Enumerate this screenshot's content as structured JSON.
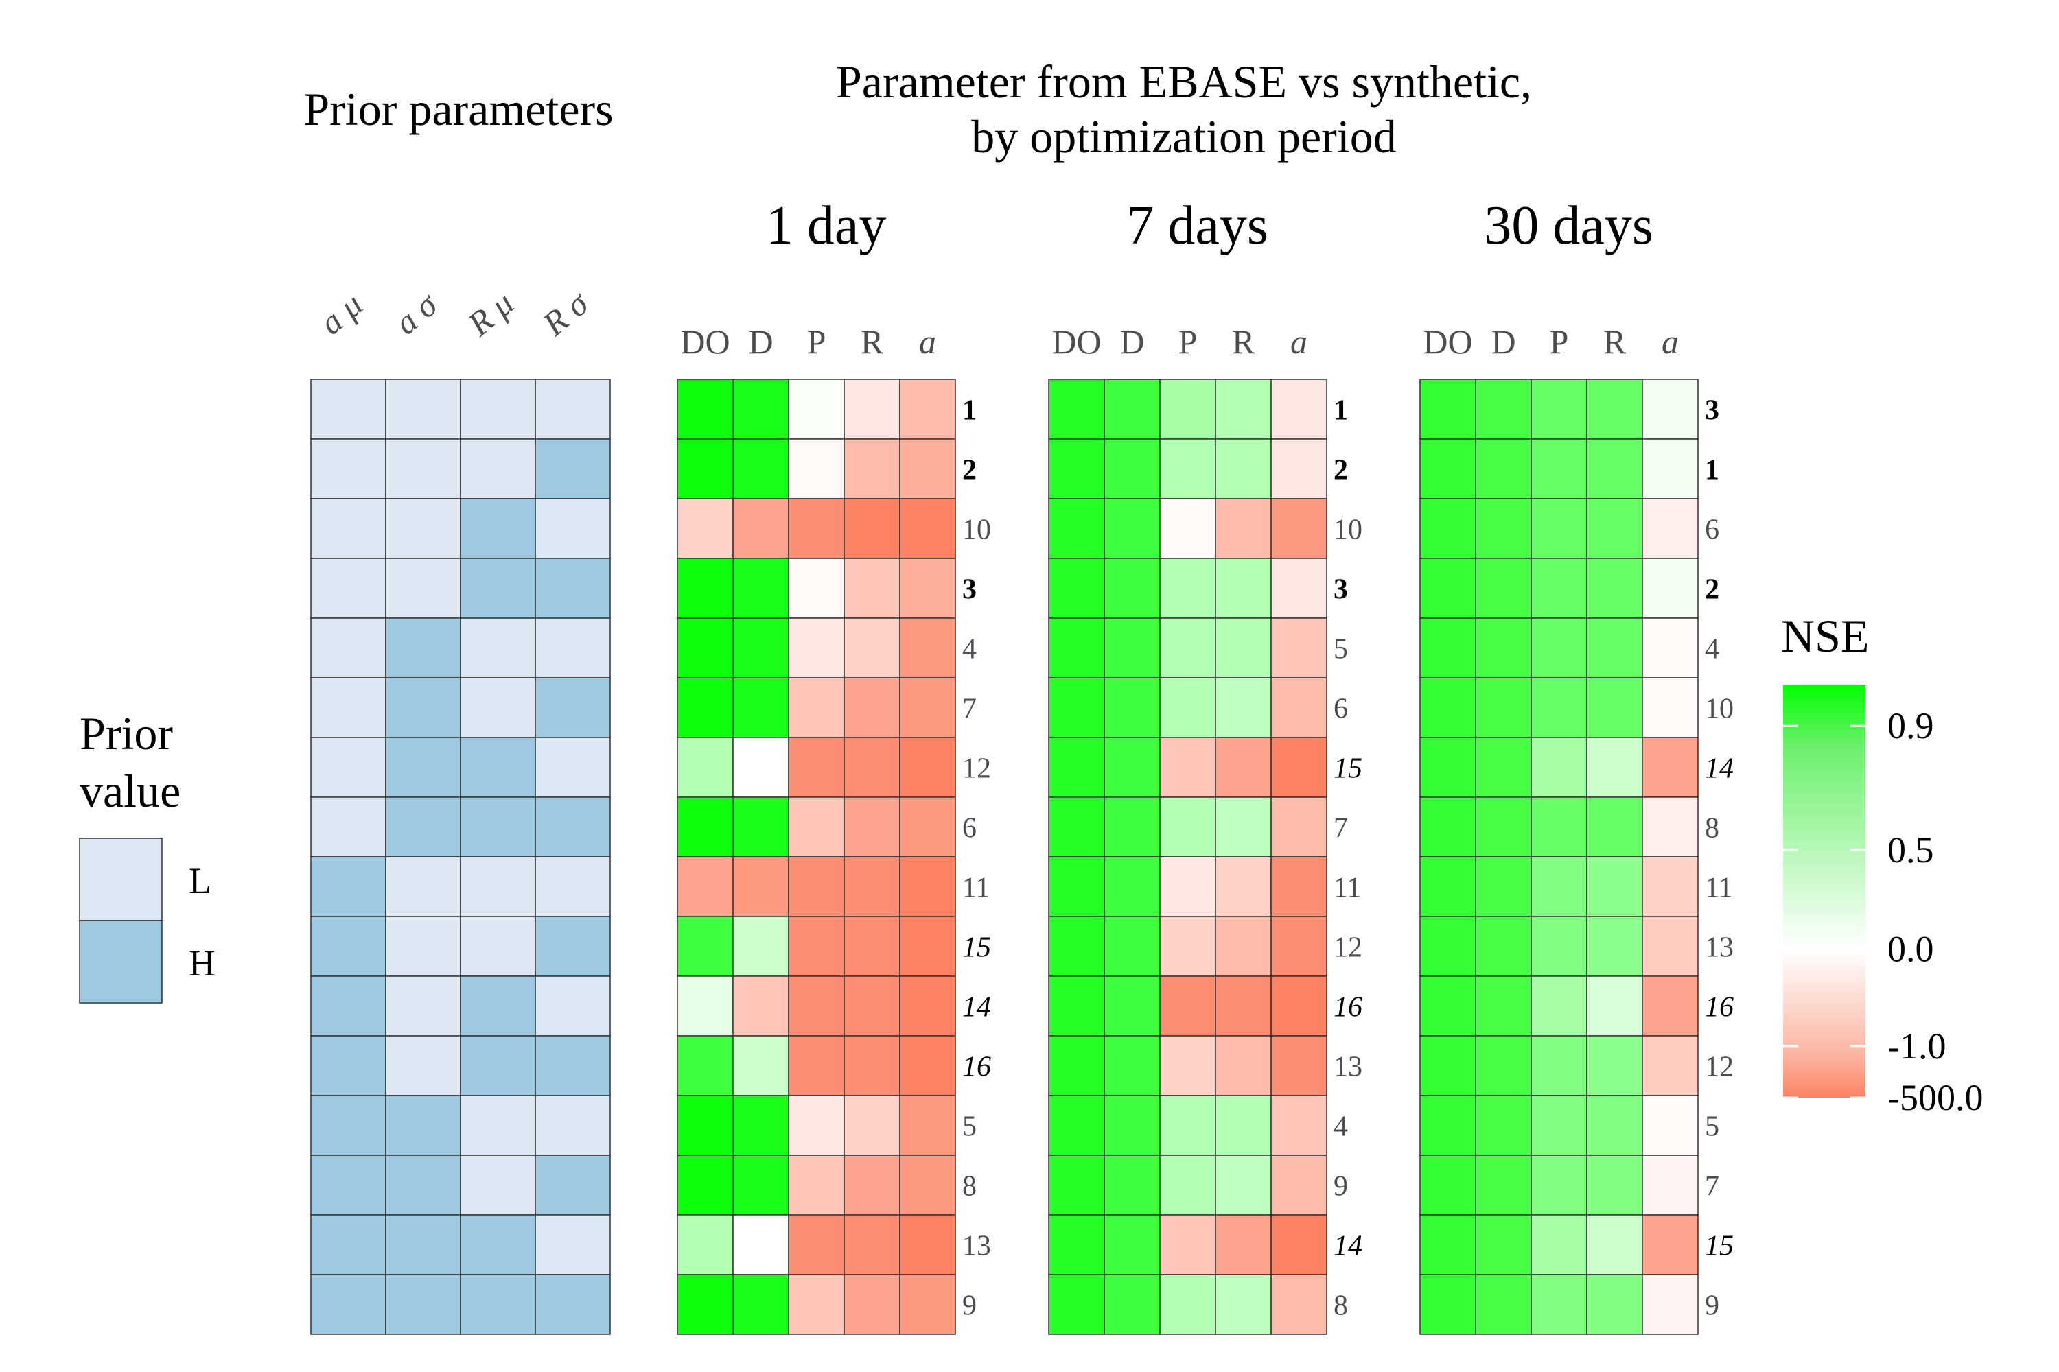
{
  "chart_data": {
    "type": "heatmap",
    "left_title": "Prior parameters",
    "right_title_line1": "Parameter from EBASE vs synthetic,",
    "right_title_line2": "by optimization period",
    "prior": {
      "columns": [
        "a μ",
        "a σ",
        "R μ",
        "R σ"
      ],
      "levels": {
        "L": "#dde8f4",
        "H": "#9ecae1"
      },
      "rows": [
        [
          "L",
          "L",
          "L",
          "L"
        ],
        [
          "L",
          "L",
          "L",
          "H"
        ],
        [
          "L",
          "L",
          "H",
          "L"
        ],
        [
          "L",
          "L",
          "H",
          "H"
        ],
        [
          "L",
          "H",
          "L",
          "L"
        ],
        [
          "L",
          "H",
          "L",
          "H"
        ],
        [
          "L",
          "H",
          "H",
          "L"
        ],
        [
          "L",
          "H",
          "H",
          "H"
        ],
        [
          "H",
          "L",
          "L",
          "L"
        ],
        [
          "H",
          "L",
          "L",
          "H"
        ],
        [
          "H",
          "L",
          "H",
          "L"
        ],
        [
          "H",
          "L",
          "H",
          "H"
        ],
        [
          "H",
          "H",
          "L",
          "L"
        ],
        [
          "H",
          "H",
          "L",
          "H"
        ],
        [
          "H",
          "H",
          "H",
          "L"
        ],
        [
          "H",
          "H",
          "H",
          "H"
        ]
      ]
    },
    "legend_prior": {
      "title_line1": "Prior",
      "title_line2": "value",
      "items": [
        "L",
        "H"
      ]
    },
    "legend_nse": {
      "title": "NSE",
      "ticks": [
        {
          "label": "0.9",
          "pos": 0.1
        },
        {
          "label": "0.5",
          "pos": 0.4
        },
        {
          "label": "0.0",
          "pos": 0.64
        },
        {
          "label": "-1.0",
          "pos": 0.875
        },
        {
          "label": "-500.0",
          "pos": 1.0
        }
      ],
      "gradient": [
        "#00ff00",
        "#6cf06c",
        "#ffffff",
        "#fbb4a0",
        "#fd8264"
      ]
    },
    "columns": [
      "DO",
      "D",
      "P",
      "R",
      "a"
    ],
    "periods": [
      {
        "name": "1 day",
        "ranks": [
          "1",
          "2",
          "10",
          "3",
          "4",
          "7",
          "12",
          "6",
          "11",
          "15",
          "14",
          "16",
          "5",
          "8",
          "13",
          "9"
        ],
        "styles": [
          "bold",
          "bold",
          "normal",
          "bold",
          "normal",
          "normal",
          "normal",
          "normal",
          "normal",
          "italic",
          "italic",
          "italic",
          "normal",
          "normal",
          "normal",
          "normal"
        ],
        "values": [
          [
            0.95,
            0.9,
            0.02,
            -0.2,
            -0.6
          ],
          [
            0.95,
            0.9,
            -0.05,
            -0.6,
            -0.7
          ],
          [
            -0.4,
            -0.8,
            -1.0,
            -1.1,
            -1.1
          ],
          [
            0.95,
            0.9,
            -0.05,
            -0.5,
            -0.7
          ],
          [
            0.95,
            0.9,
            -0.2,
            -0.4,
            -0.9
          ],
          [
            0.95,
            0.9,
            -0.5,
            -0.8,
            -0.9
          ],
          [
            0.3,
            0.0,
            -1.0,
            -1.0,
            -1.1
          ],
          [
            0.95,
            0.9,
            -0.5,
            -0.8,
            -0.9
          ],
          [
            -0.8,
            -0.9,
            -1.0,
            -1.0,
            -1.1
          ],
          [
            0.75,
            0.2,
            -1.0,
            -1.0,
            -1.1
          ],
          [
            0.1,
            -0.5,
            -1.0,
            -1.0,
            -1.1
          ],
          [
            0.75,
            0.2,
            -1.0,
            -1.0,
            -1.1
          ],
          [
            0.95,
            0.9,
            -0.2,
            -0.4,
            -0.9
          ],
          [
            0.95,
            0.9,
            -0.5,
            -0.8,
            -0.9
          ],
          [
            0.3,
            0.0,
            -1.0,
            -1.0,
            -1.1
          ],
          [
            0.95,
            0.9,
            -0.5,
            -0.8,
            -0.9
          ]
        ]
      },
      {
        "name": "7 days",
        "ranks": [
          "1",
          "2",
          "10",
          "3",
          "5",
          "6",
          "15",
          "7",
          "11",
          "12",
          "16",
          "13",
          "4",
          "9",
          "14",
          "8"
        ],
        "styles": [
          "bold",
          "bold",
          "normal",
          "bold",
          "normal",
          "normal",
          "italic",
          "normal",
          "normal",
          "normal",
          "italic",
          "normal",
          "normal",
          "normal",
          "italic",
          "normal"
        ],
        "values": [
          [
            0.85,
            0.75,
            0.35,
            0.3,
            -0.2
          ],
          [
            0.85,
            0.75,
            0.3,
            0.3,
            -0.2
          ],
          [
            0.85,
            0.75,
            -0.05,
            -0.6,
            -0.9
          ],
          [
            0.85,
            0.75,
            0.3,
            0.3,
            -0.2
          ],
          [
            0.85,
            0.75,
            0.3,
            0.3,
            -0.5
          ],
          [
            0.85,
            0.75,
            0.3,
            0.25,
            -0.6
          ],
          [
            0.85,
            0.75,
            -0.5,
            -0.8,
            -1.1
          ],
          [
            0.85,
            0.75,
            0.3,
            0.25,
            -0.6
          ],
          [
            0.85,
            0.75,
            -0.2,
            -0.4,
            -1.0
          ],
          [
            0.85,
            0.75,
            -0.4,
            -0.6,
            -1.0
          ],
          [
            0.85,
            0.75,
            -1.0,
            -1.0,
            -1.1
          ],
          [
            0.85,
            0.75,
            -0.4,
            -0.6,
            -1.0
          ],
          [
            0.85,
            0.75,
            0.3,
            0.3,
            -0.5
          ],
          [
            0.85,
            0.75,
            0.3,
            0.25,
            -0.6
          ],
          [
            0.85,
            0.75,
            -0.5,
            -0.8,
            -1.1
          ],
          [
            0.85,
            0.75,
            0.3,
            0.25,
            -0.6
          ]
        ]
      },
      {
        "name": "30 days",
        "ranks": [
          "3",
          "1",
          "6",
          "2",
          "4",
          "10",
          "14",
          "8",
          "11",
          "13",
          "16",
          "12",
          "5",
          "7",
          "15",
          "9"
        ],
        "styles": [
          "bold",
          "bold",
          "normal",
          "bold",
          "normal",
          "normal",
          "italic",
          "normal",
          "normal",
          "normal",
          "italic",
          "normal",
          "normal",
          "normal",
          "italic",
          "normal"
        ],
        "values": [
          [
            0.8,
            0.72,
            0.6,
            0.6,
            0.05
          ],
          [
            0.8,
            0.72,
            0.6,
            0.6,
            0.05
          ],
          [
            0.8,
            0.72,
            0.6,
            0.6,
            -0.15
          ],
          [
            0.8,
            0.72,
            0.6,
            0.6,
            0.05
          ],
          [
            0.8,
            0.72,
            0.6,
            0.6,
            -0.05
          ],
          [
            0.8,
            0.72,
            0.6,
            0.6,
            -0.05
          ],
          [
            0.8,
            0.72,
            0.35,
            0.2,
            -0.8
          ],
          [
            0.8,
            0.72,
            0.6,
            0.6,
            -0.15
          ],
          [
            0.8,
            0.72,
            0.5,
            0.45,
            -0.4
          ],
          [
            0.8,
            0.72,
            0.5,
            0.45,
            -0.45
          ],
          [
            0.8,
            0.72,
            0.35,
            0.15,
            -0.8
          ],
          [
            0.8,
            0.72,
            0.5,
            0.45,
            -0.45
          ],
          [
            0.8,
            0.72,
            0.5,
            0.5,
            -0.05
          ],
          [
            0.8,
            0.72,
            0.5,
            0.5,
            -0.1
          ],
          [
            0.8,
            0.72,
            0.35,
            0.2,
            -0.8
          ],
          [
            0.8,
            0.72,
            0.5,
            0.5,
            -0.1
          ]
        ]
      }
    ]
  }
}
